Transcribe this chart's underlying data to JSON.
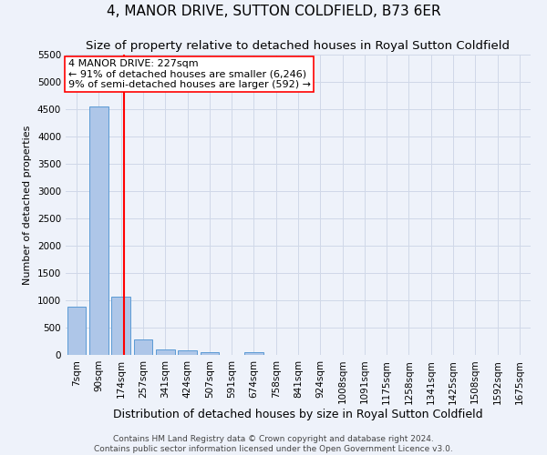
{
  "title": "4, MANOR DRIVE, SUTTON COLDFIELD, B73 6ER",
  "subtitle": "Size of property relative to detached houses in Royal Sutton Coldfield",
  "xlabel": "Distribution of detached houses by size in Royal Sutton Coldfield",
  "ylabel": "Number of detached properties",
  "footer_line1": "Contains HM Land Registry data © Crown copyright and database right 2024.",
  "footer_line2": "Contains public sector information licensed under the Open Government Licence v3.0.",
  "bin_labels": [
    "7sqm",
    "90sqm",
    "174sqm",
    "257sqm",
    "341sqm",
    "424sqm",
    "507sqm",
    "591sqm",
    "674sqm",
    "758sqm",
    "841sqm",
    "924sqm",
    "1008sqm",
    "1091sqm",
    "1175sqm",
    "1258sqm",
    "1341sqm",
    "1425sqm",
    "1508sqm",
    "1592sqm",
    "1675sqm"
  ],
  "bar_values": [
    880,
    4550,
    1060,
    280,
    95,
    90,
    55,
    0,
    55,
    0,
    0,
    0,
    0,
    0,
    0,
    0,
    0,
    0,
    0,
    0,
    0
  ],
  "bar_color": "#aec6e8",
  "bar_edge_color": "#5b9bd5",
  "vline_color": "red",
  "annotation_line1": "4 MANOR DRIVE: 227sqm",
  "annotation_line2": "← 91% of detached houses are smaller (6,246)",
  "annotation_line3": "9% of semi-detached houses are larger (592) →",
  "annotation_box_color": "white",
  "annotation_box_edge_color": "red",
  "ylim": [
    0,
    5500
  ],
  "yticks": [
    0,
    500,
    1000,
    1500,
    2000,
    2500,
    3000,
    3500,
    4000,
    4500,
    5000,
    5500
  ],
  "grid_color": "#d0d8e8",
  "bg_color": "#eef2fa",
  "plot_bg_color": "#eef2fa",
  "title_fontsize": 11,
  "subtitle_fontsize": 9.5,
  "xlabel_fontsize": 9,
  "ylabel_fontsize": 8,
  "tick_fontsize": 7.5,
  "annotation_fontsize": 8,
  "footer_fontsize": 6.5
}
